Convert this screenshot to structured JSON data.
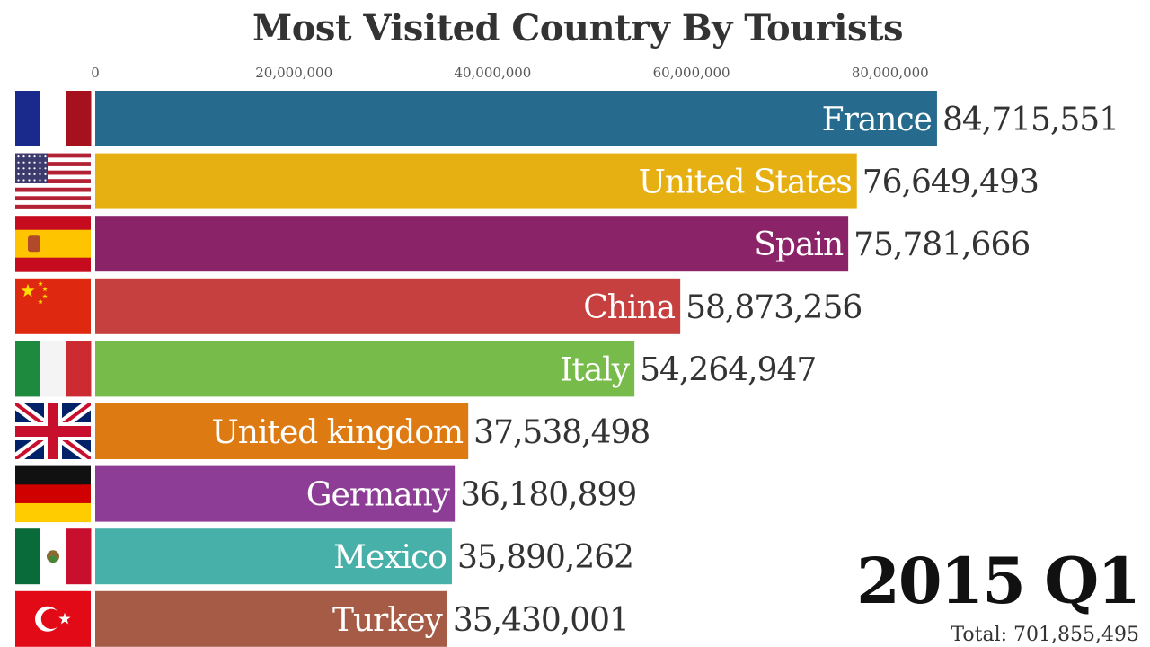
{
  "chart_data": {
    "type": "bar",
    "orientation": "horizontal",
    "title": "Most Visited Country By Tourists",
    "xlabel": "",
    "ylabel": "",
    "xlim": [
      0,
      85000000
    ],
    "x_ticks": [
      0,
      20000000,
      40000000,
      60000000,
      80000000
    ],
    "x_tick_labels": [
      "0",
      "20,000,000",
      "40,000,000",
      "60,000,000",
      "80,000,000"
    ],
    "grid": false,
    "period": "2015 Q1",
    "total_label": "Total: 701,855,495",
    "categories": [
      "France",
      "United States",
      "Spain",
      "China",
      "Italy",
      "United kingdom",
      "Germany",
      "Mexico",
      "Turkey"
    ],
    "values": [
      84715551,
      76649493,
      75781666,
      58873256,
      54264947,
      37538498,
      36180899,
      35890262,
      35430001
    ],
    "value_labels": [
      "84,715,551",
      "76,649,493",
      "75,781,666",
      "58,873,256",
      "54,264,947",
      "37,538,498",
      "36,180,899",
      "35,890,262",
      "35,430,001"
    ],
    "colors": [
      "#266b8e",
      "#e6b012",
      "#8b2369",
      "#c5403e",
      "#77bb4a",
      "#dd7a11",
      "#8e3d96",
      "#47b1a9",
      "#a55b45"
    ],
    "flags": [
      "france-flag",
      "usa-flag",
      "spain-flag",
      "china-flag",
      "italy-flag",
      "uk-flag",
      "germany-flag",
      "mexico-flag",
      "turkey-flag"
    ]
  }
}
